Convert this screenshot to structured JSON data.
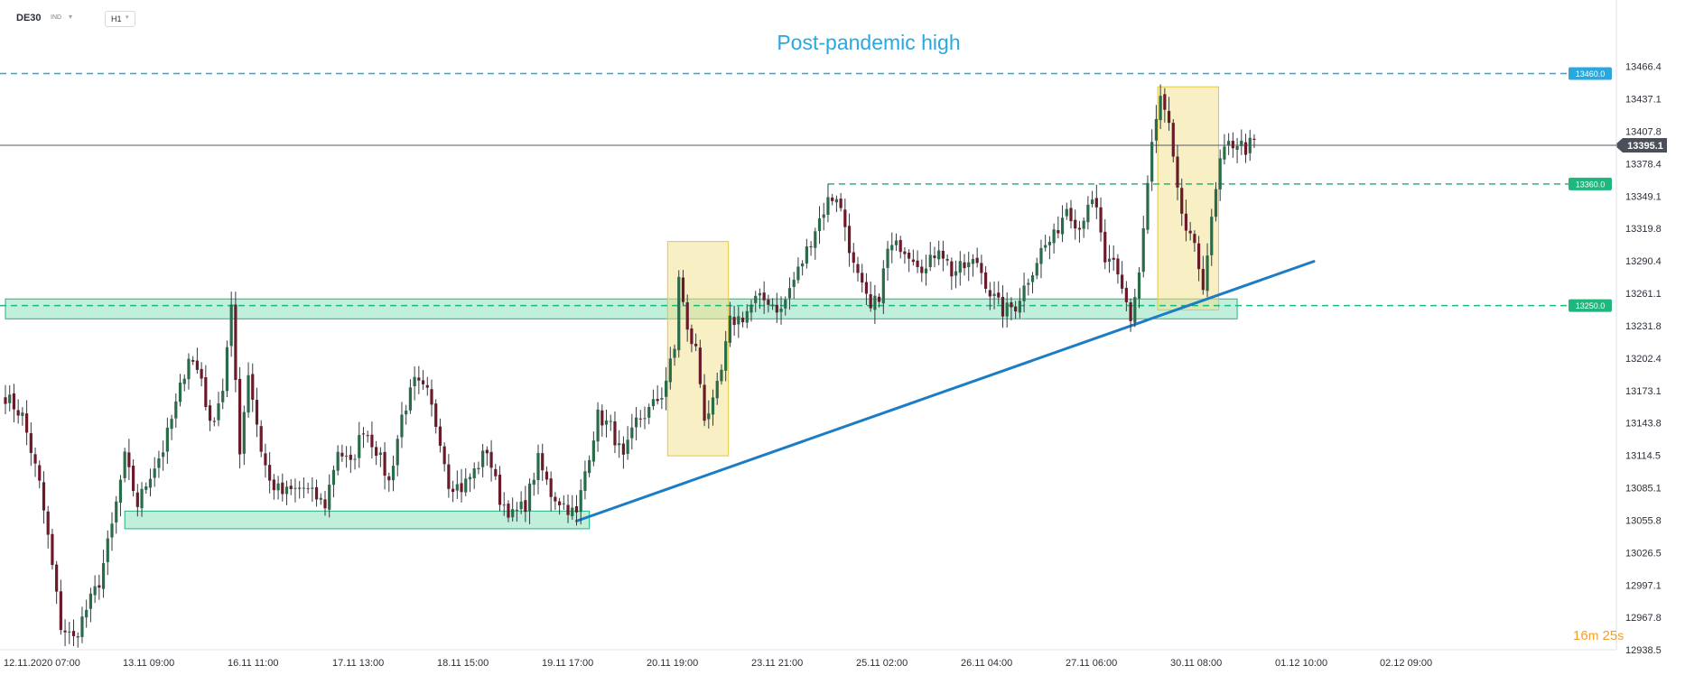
{
  "toolbar": {
    "symbol": "DE30",
    "symbol_type": "IND",
    "timeframe": "H1"
  },
  "timer": {
    "minutes": "16",
    "minutes_unit": "m",
    "seconds": "25",
    "seconds_unit": "s"
  },
  "colors": {
    "up_candle": "#2a6b4a",
    "down_candle": "#6b1a2a",
    "support_zone": "#34c98a",
    "highlight_box": "#f2e08a",
    "trendline": "#1c7cc4",
    "resistance_line": "#29a8e0",
    "level_green": "#1fb77e",
    "price_tag": "#4a4f5a"
  },
  "chart_data": {
    "type": "candlestick",
    "title": "",
    "annotation": "Post-pandemic high",
    "ylim": [
      12938.5,
      13480
    ],
    "y_ticks": [
      "13466.4",
      "13437.1",
      "13407.8",
      "13378.4",
      "13349.1",
      "13319.8",
      "13290.4",
      "13261.1",
      "13231.8",
      "13202.4",
      "13173.1",
      "13143.8",
      "13114.5",
      "13085.1",
      "13055.8",
      "13026.5",
      "12997.1",
      "12967.8",
      "12938.5"
    ],
    "x_ticks": [
      "12.11.2020  07:00",
      "13.11  09:00",
      "16.11  11:00",
      "17.11  13:00",
      "18.11  15:00",
      "19.11  17:00",
      "20.11  19:00",
      "23.11  21:00",
      "25.11  02:00",
      "26.11  04:00",
      "27.11  06:00",
      "30.11  08:00",
      "01.12  10:00",
      "02.12  09:00"
    ],
    "current_price": 13395.1,
    "current_price_label": "13395.1",
    "levels": [
      {
        "value": 13460.0,
        "label": "13460.0",
        "kind": "resistance"
      },
      {
        "value": 13360.0,
        "label": "13360.0",
        "kind": "level"
      },
      {
        "value": 13250.0,
        "label": "13250.0",
        "kind": "level"
      }
    ],
    "zones": [
      {
        "low": 13238,
        "high": 13256,
        "from_bar": 0,
        "to_bar": 289
      },
      {
        "low": 13048,
        "high": 13064,
        "from_bar": 28,
        "to_bar": 137
      }
    ],
    "highlights": [
      {
        "low": 13114,
        "high": 13308,
        "from_bar": 156,
        "to_bar": 169
      },
      {
        "low": 13246,
        "high": 13448,
        "from_bar": 271,
        "to_bar": 284
      }
    ],
    "trendline": {
      "bar_start": 134,
      "value_start": 13055,
      "bar_end": 307,
      "value_end": 13290
    },
    "anchors": [
      [
        0,
        13168
      ],
      [
        4,
        13150
      ],
      [
        8,
        13088
      ],
      [
        10,
        13040
      ],
      [
        13,
        12960
      ],
      [
        16,
        12948
      ],
      [
        19,
        12975
      ],
      [
        22,
        13000
      ],
      [
        25,
        13050
      ],
      [
        28,
        13112
      ],
      [
        31,
        13070
      ],
      [
        34,
        13098
      ],
      [
        37,
        13120
      ],
      [
        40,
        13160
      ],
      [
        43,
        13205
      ],
      [
        46,
        13185
      ],
      [
        48,
        13140
      ],
      [
        51,
        13175
      ],
      [
        53,
        13245
      ],
      [
        55,
        13120
      ],
      [
        57,
        13190
      ],
      [
        60,
        13120
      ],
      [
        62,
        13090
      ],
      [
        65,
        13080
      ],
      [
        70,
        13085
      ],
      [
        75,
        13070
      ],
      [
        78,
        13120
      ],
      [
        81,
        13105
      ],
      [
        84,
        13140
      ],
      [
        87,
        13120
      ],
      [
        90,
        13090
      ],
      [
        93,
        13150
      ],
      [
        96,
        13180
      ],
      [
        99,
        13170
      ],
      [
        102,
        13130
      ],
      [
        104,
        13090
      ],
      [
        107,
        13085
      ],
      [
        110,
        13100
      ],
      [
        113,
        13120
      ],
      [
        116,
        13075
      ],
      [
        119,
        13060
      ],
      [
        122,
        13070
      ],
      [
        125,
        13110
      ],
      [
        128,
        13080
      ],
      [
        131,
        13070
      ],
      [
        134,
        13060
      ],
      [
        136,
        13100
      ],
      [
        139,
        13150
      ],
      [
        142,
        13140
      ],
      [
        145,
        13110
      ],
      [
        148,
        13145
      ],
      [
        151,
        13155
      ],
      [
        154,
        13170
      ],
      [
        157,
        13210
      ],
      [
        158,
        13278
      ],
      [
        160,
        13225
      ],
      [
        162,
        13210
      ],
      [
        164,
        13150
      ],
      [
        166,
        13160
      ],
      [
        168,
        13190
      ],
      [
        170,
        13235
      ],
      [
        173,
        13240
      ],
      [
        176,
        13255
      ],
      [
        179,
        13255
      ],
      [
        182,
        13245
      ],
      [
        184,
        13265
      ],
      [
        187,
        13290
      ],
      [
        190,
        13320
      ],
      [
        193,
        13345
      ],
      [
        195,
        13350
      ],
      [
        197,
        13322
      ],
      [
        199,
        13285
      ],
      [
        201,
        13265
      ],
      [
        203,
        13245
      ],
      [
        205,
        13260
      ],
      [
        207,
        13300
      ],
      [
        210,
        13305
      ],
      [
        213,
        13295
      ],
      [
        216,
        13282
      ],
      [
        219,
        13305
      ],
      [
        222,
        13280
      ],
      [
        225,
        13285
      ],
      [
        228,
        13290
      ],
      [
        231,
        13262
      ],
      [
        234,
        13245
      ],
      [
        237,
        13250
      ],
      [
        240,
        13275
      ],
      [
        243,
        13300
      ],
      [
        246,
        13312
      ],
      [
        249,
        13340
      ],
      [
        252,
        13320
      ],
      [
        254,
        13345
      ],
      [
        256,
        13335
      ],
      [
        258,
        13290
      ],
      [
        260,
        13285
      ],
      [
        263,
        13252
      ],
      [
        264,
        13238
      ],
      [
        266,
        13280
      ],
      [
        268,
        13360
      ],
      [
        269,
        13395
      ],
      [
        271,
        13438
      ],
      [
        273,
        13410
      ],
      [
        275,
        13350
      ],
      [
        277,
        13318
      ],
      [
        279,
        13300
      ],
      [
        281,
        13270
      ],
      [
        283,
        13325
      ],
      [
        285,
        13380
      ],
      [
        287,
        13395
      ],
      [
        289,
        13398
      ],
      [
        291,
        13392
      ],
      [
        293,
        13400
      ]
    ]
  }
}
